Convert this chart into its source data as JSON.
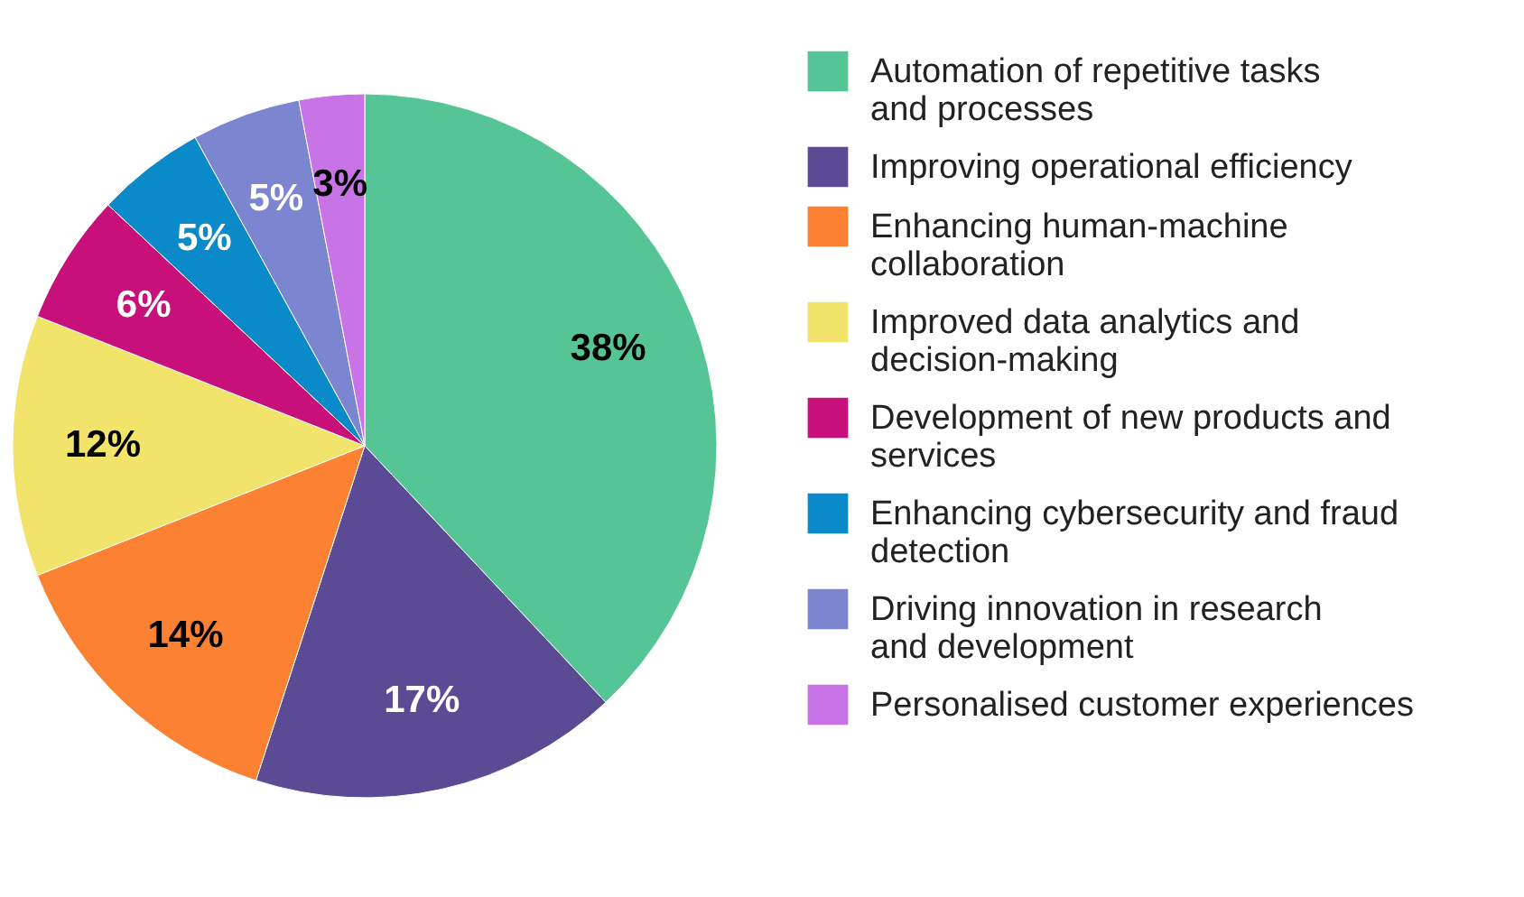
{
  "chart_data": {
    "type": "pie",
    "categories": [
      "Automation of repetitive tasks and processes",
      "Improving operational efficiency",
      "Enhancing human-machine collaboration",
      "Improved data analytics and decision-making",
      "Development of new products and services",
      "Enhancing cybersecurity and fraud detection",
      "Driving innovation in research and development",
      "Personalised customer experiences"
    ],
    "values": [
      38,
      17,
      14,
      12,
      6,
      5,
      5,
      3
    ],
    "value_labels": [
      "38%",
      "17%",
      "14%",
      "12%",
      "6%",
      "5%",
      "5%",
      "3%"
    ],
    "colors": [
      "#56c596",
      "#5b4a94",
      "#fc8132",
      "#f2e36b",
      "#c8107a",
      "#0a8ac8",
      "#7c85d0",
      "#c873e6"
    ],
    "legend": "right"
  }
}
